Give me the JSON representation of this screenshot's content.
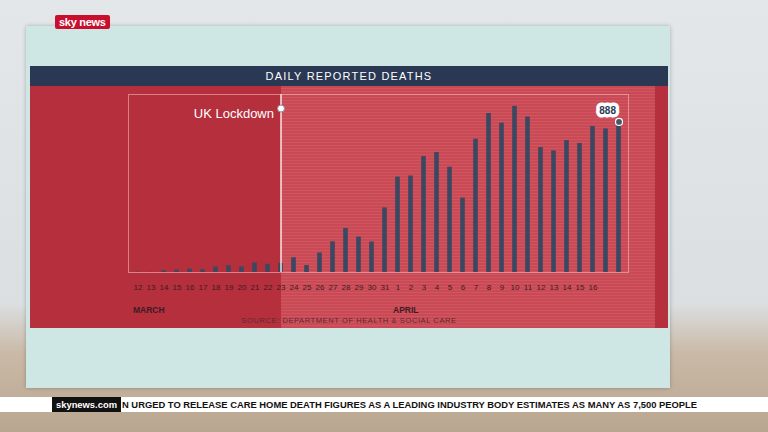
{
  "header": {
    "logo": "sky news"
  },
  "chart_data": {
    "type": "bar",
    "title": "DAILY REPORTED DEATHS",
    "caption": "SOURCE: DEPARTMENT OF HEALTH & SOCIAL CARE",
    "categories": [
      "12",
      "13",
      "14",
      "15",
      "16",
      "17",
      "18",
      "19",
      "20",
      "21",
      "22",
      "23",
      "24",
      "25",
      "26",
      "27",
      "28",
      "29",
      "30",
      "31",
      "1",
      "2",
      "3",
      "4",
      "5",
      "6",
      "7",
      "8",
      "9",
      "10",
      "11",
      "12",
      "13",
      "14",
      "15",
      "16",
      null,
      null
    ],
    "values": [
      2,
      1,
      10,
      14,
      20,
      16,
      33,
      40,
      33,
      56,
      48,
      54,
      87,
      41,
      115,
      181,
      260,
      209,
      180,
      381,
      563,
      569,
      684,
      708,
      621,
      439,
      786,
      938,
      881,
      980,
      917,
      737,
      717,
      778,
      761,
      861,
      847,
      888
    ],
    "x_groups": [
      {
        "label": "MARCH",
        "start": 0
      },
      {
        "label": "APRIL",
        "start": 20
      }
    ],
    "annotations": [
      {
        "text": "UK Lockdown",
        "x": 11
      },
      {
        "text": "888",
        "x": 37,
        "y": 888
      }
    ],
    "color": "#3b4862",
    "ylim": [
      0,
      1050
    ],
    "yticks": [],
    "grid": false,
    "tick_labels": "x"
  },
  "ticker": {
    "site": "skynews.com",
    "text": "N URGED TO RELEASE CARE HOME DEATH FIGURES AS A LEADING INDUSTRY BODY ESTIMATES AS MANY AS 7,500 PEOPLE"
  }
}
